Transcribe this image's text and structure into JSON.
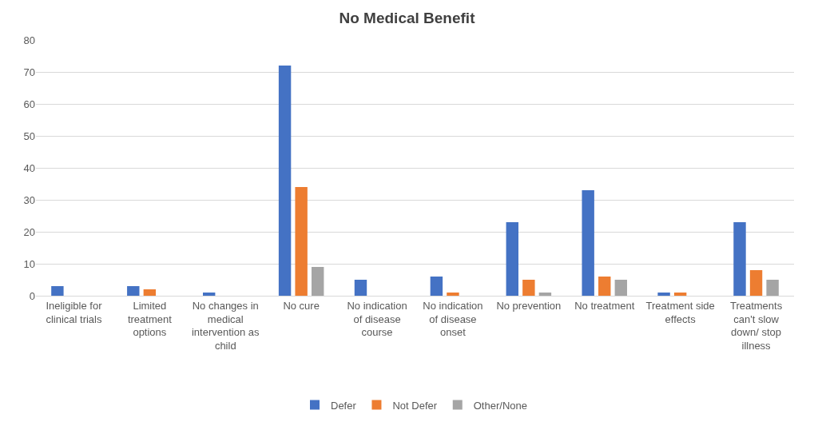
{
  "chart_data": {
    "type": "bar",
    "title": "No Medical Benefit",
    "categories": [
      "Ineligible for clinical trials",
      "Limited treatment options",
      "No changes in medical intervention as child",
      "No cure",
      "No indication of disease course",
      "No indication of disease onset",
      "No prevention",
      "No treatment",
      "Treatment side effects",
      "Treatments can't slow down/ stop illness"
    ],
    "series": [
      {
        "name": "Defer",
        "color": "#4472c4",
        "values": [
          3,
          3,
          1,
          72,
          5,
          6,
          23,
          33,
          1,
          23
        ]
      },
      {
        "name": "Not Defer",
        "color": "#ed7d31",
        "values": [
          0,
          2,
          0,
          34,
          0,
          1,
          5,
          6,
          1,
          8
        ]
      },
      {
        "name": "Other/None",
        "color": "#a5a5a5",
        "values": [
          0,
          0,
          0,
          9,
          0,
          0,
          1,
          5,
          0,
          5
        ]
      }
    ],
    "ylim": [
      0,
      80
    ],
    "yticks": [
      0,
      10,
      20,
      30,
      40,
      50,
      60,
      70,
      80
    ],
    "grid": "y",
    "legend": "bottom"
  }
}
